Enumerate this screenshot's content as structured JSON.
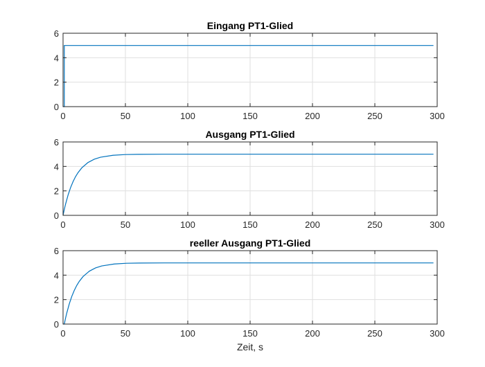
{
  "chart_data": [
    {
      "type": "line",
      "title": "Eingang PT1-Glied",
      "xlabel": "",
      "ylabel": "",
      "xlim": [
        0,
        300
      ],
      "ylim": [
        0,
        6
      ],
      "xticks": [
        0,
        50,
        100,
        150,
        200,
        250,
        300
      ],
      "yticks": [
        0,
        2,
        4,
        6
      ],
      "grid": true,
      "series": [
        {
          "x": [
            0,
            1,
            1,
            297
          ],
          "y": [
            0,
            0,
            5,
            5
          ]
        }
      ]
    },
    {
      "type": "line",
      "title": "Ausgang PT1-Glied",
      "xlabel": "",
      "ylabel": "",
      "xlim": [
        0,
        300
      ],
      "ylim": [
        0,
        6
      ],
      "xticks": [
        0,
        50,
        100,
        150,
        200,
        250,
        300
      ],
      "yticks": [
        0,
        2,
        4,
        6
      ],
      "grid": true,
      "series": [
        {
          "x": [
            0,
            1,
            2,
            4,
            6,
            8,
            10,
            12,
            15,
            20,
            25,
            30,
            40,
            50,
            60,
            80,
            100,
            150,
            200,
            250,
            297
          ],
          "y": [
            0,
            0.48,
            0.91,
            1.65,
            2.26,
            2.75,
            3.16,
            3.49,
            3.88,
            4.32,
            4.59,
            4.75,
            4.91,
            4.97,
            4.99,
            5.0,
            5.0,
            5.0,
            5.0,
            5.0,
            5.0
          ]
        }
      ]
    },
    {
      "type": "line",
      "title": "reeller Ausgang PT1-Glied",
      "xlabel": "Zeit, s",
      "ylabel": "",
      "xlim": [
        0,
        300
      ],
      "ylim": [
        0,
        6
      ],
      "xticks": [
        0,
        50,
        100,
        150,
        200,
        250,
        300
      ],
      "yticks": [
        0,
        2,
        4,
        6
      ],
      "grid": true,
      "series": [
        {
          "x": [
            0,
            1,
            2,
            3,
            5,
            7,
            9,
            11,
            13,
            16,
            21,
            26,
            31,
            41,
            51,
            61,
            81,
            101,
            151,
            201,
            251,
            297
          ],
          "y": [
            0,
            0,
            0.48,
            0.91,
            1.65,
            2.26,
            2.75,
            3.16,
            3.49,
            3.88,
            4.32,
            4.59,
            4.75,
            4.91,
            4.97,
            4.99,
            5.0,
            5.0,
            5.0,
            5.0,
            5.0,
            5.0
          ]
        }
      ]
    }
  ],
  "colors": {
    "series": "#0072bd",
    "axes": "#262626",
    "grid": "#dfdfdf",
    "background": "#ffffff"
  }
}
